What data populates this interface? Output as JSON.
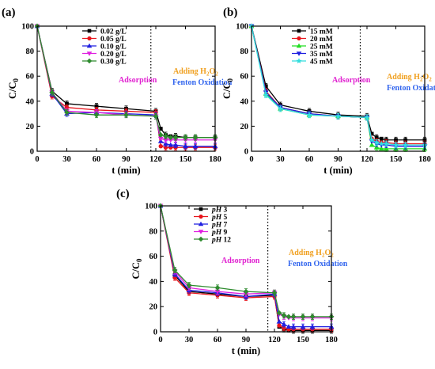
{
  "chart_data": [
    {
      "panel_label": "(a)",
      "type": "line",
      "xlabel": "t (min)",
      "ylabel": "C/C",
      "ylabel_sub": "0",
      "xlim": [
        0,
        180
      ],
      "ylim": [
        0,
        100
      ],
      "xticks": [
        0,
        30,
        60,
        90,
        120,
        150,
        180
      ],
      "yticks": [
        0,
        20,
        40,
        60,
        80,
        100
      ],
      "divider_x": 115,
      "annotations": [
        {
          "key": "adsorption",
          "text": "Adsorption",
          "color": "#e020d0"
        },
        {
          "key": "adding",
          "text": "Adding H",
          "sub": "2",
          "text2": "O",
          "sub2": "2",
          "color": "#f0a020"
        },
        {
          "key": "fenton",
          "text": "Fenton Oxidation",
          "color": "#3366ee"
        }
      ],
      "x": [
        0,
        15,
        30,
        60,
        90,
        120,
        125,
        130,
        135,
        140,
        150,
        160,
        180
      ],
      "series": [
        {
          "name": "0.02 g/L",
          "color": "#000000",
          "marker": "square",
          "values": [
            100,
            48,
            38,
            36,
            34,
            32,
            18,
            13,
            12,
            12,
            11,
            11,
            11
          ]
        },
        {
          "name": "0.05 g/L",
          "color": "#e8141b",
          "marker": "circle",
          "values": [
            100,
            44,
            35,
            33,
            32,
            31,
            4,
            3,
            3,
            3,
            3,
            3,
            3
          ]
        },
        {
          "name": "0.10 g/L",
          "color": "#1f1fe0",
          "marker": "triangle",
          "values": [
            100,
            46,
            30,
            31,
            30,
            29,
            8,
            6,
            5,
            5,
            4,
            4,
            4
          ]
        },
        {
          "name": "0.20 g/L",
          "color": "#e020e0",
          "marker": "triangle-down",
          "values": [
            100,
            47,
            32,
            31,
            29,
            28,
            10,
            9,
            9,
            9,
            9,
            9,
            9
          ]
        },
        {
          "name": "0.30 g/L",
          "color": "#2e8b2e",
          "marker": "diamond",
          "values": [
            100,
            47,
            31,
            29,
            29,
            28,
            13,
            12,
            11,
            11,
            11,
            11,
            11
          ]
        }
      ]
    },
    {
      "panel_label": "(b)",
      "type": "line",
      "xlabel": "t (min)",
      "ylabel": "C/C",
      "ylabel_sub": "0",
      "xlim": [
        0,
        180
      ],
      "ylim": [
        0,
        100
      ],
      "xticks": [
        0,
        30,
        60,
        90,
        120,
        150,
        180
      ],
      "yticks": [
        0,
        20,
        40,
        60,
        80,
        100
      ],
      "divider_x": 113,
      "annotations": [
        {
          "key": "adsorption",
          "text": "Adsorption",
          "color": "#e020d0"
        },
        {
          "key": "adding",
          "text": "Adding H",
          "sub": "2",
          "text2": "O",
          "sub2": "2",
          "color": "#f0a020"
        },
        {
          "key": "fenton",
          "text": "Fenton Oxidation",
          "color": "#3366ee"
        }
      ],
      "x": [
        0,
        15,
        30,
        60,
        90,
        120,
        125,
        130,
        135,
        140,
        150,
        160,
        180
      ],
      "series": [
        {
          "name": "15 mM",
          "color": "#000000",
          "marker": "square",
          "values": [
            100,
            52,
            37,
            32,
            29,
            28,
            14,
            11,
            10,
            9,
            9,
            9,
            9
          ]
        },
        {
          "name": "20 mM",
          "color": "#e8141b",
          "marker": "circle",
          "values": [
            100,
            48,
            35,
            30,
            28,
            27,
            10,
            8,
            7,
            7,
            6,
            6,
            6
          ]
        },
        {
          "name": "25 mM",
          "color": "#22dd22",
          "marker": "triangle",
          "values": [
            100,
            46,
            34,
            29,
            28,
            27,
            5,
            3,
            2,
            2,
            2,
            2,
            2
          ]
        },
        {
          "name": "35 mM",
          "color": "#1f1fe0",
          "marker": "triangle-down",
          "values": [
            100,
            47,
            35,
            30,
            28,
            27,
            8,
            6,
            5,
            5,
            4,
            4,
            4
          ]
        },
        {
          "name": "45 mM",
          "color": "#33dddd",
          "marker": "star",
          "values": [
            100,
            45,
            34,
            29,
            28,
            27,
            9,
            7,
            6,
            6,
            5,
            5,
            5
          ]
        }
      ]
    },
    {
      "panel_label": "(c)",
      "type": "line",
      "xlabel": "t (min)",
      "ylabel": "C/C",
      "ylabel_sub": "0",
      "xlim": [
        0,
        180
      ],
      "ylim": [
        0,
        100
      ],
      "xticks": [
        0,
        30,
        60,
        90,
        120,
        150,
        180
      ],
      "yticks": [
        0,
        20,
        40,
        60,
        80,
        100
      ],
      "divider_x": 113,
      "annotations": [
        {
          "key": "adsorption",
          "text": "Adsorption",
          "color": "#e020d0"
        },
        {
          "key": "adding",
          "text": "Adding H",
          "sub": "2",
          "text2": "O",
          "sub2": "2",
          "color": "#f0a020"
        },
        {
          "key": "fenton",
          "text": "Fenton Oxidation",
          "color": "#3366ee"
        }
      ],
      "x": [
        0,
        15,
        30,
        60,
        90,
        120,
        125,
        130,
        135,
        140,
        150,
        160,
        180
      ],
      "series": [
        {
          "name": "3",
          "prefix": "pH ",
          "color": "#000000",
          "marker": "square",
          "values": [
            100,
            45,
            32,
            30,
            28,
            29,
            4,
            2,
            1,
            1,
            1,
            1,
            1
          ]
        },
        {
          "name": "5",
          "prefix": "pH ",
          "color": "#e8141b",
          "marker": "circle",
          "values": [
            100,
            43,
            31,
            29,
            27,
            28,
            5,
            3,
            2,
            2,
            2,
            2,
            2
          ]
        },
        {
          "name": "7",
          "prefix": "pH ",
          "color": "#1f1fe0",
          "marker": "triangle",
          "values": [
            100,
            46,
            33,
            31,
            28,
            30,
            8,
            6,
            4,
            4,
            4,
            4,
            4
          ]
        },
        {
          "name": "9",
          "prefix": "pH ",
          "color": "#e020e0",
          "marker": "triangle-down",
          "values": [
            100,
            48,
            35,
            32,
            30,
            31,
            14,
            12,
            11,
            11,
            11,
            11,
            11
          ]
        },
        {
          "name": "12",
          "prefix": "pH ",
          "color": "#2e8b2e",
          "marker": "diamond",
          "values": [
            100,
            49,
            37,
            35,
            32,
            31,
            15,
            13,
            12,
            12,
            12,
            12,
            12
          ]
        }
      ]
    }
  ]
}
